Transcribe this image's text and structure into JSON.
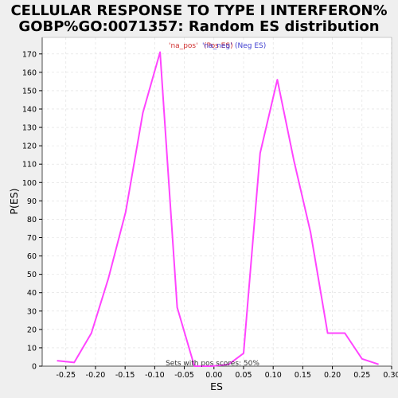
{
  "chart_data": {
    "type": "line",
    "title_lines": [
      "CELLULAR RESPONSE TO TYPE I INTERFERON%",
      "GOBP%GO:0071357: Random ES distribution"
    ],
    "xlabel": "ES",
    "ylabel": "P(ES)",
    "xlim": [
      -0.29,
      0.3
    ],
    "ylim": [
      0,
      179
    ],
    "x_ticks": [
      -0.25,
      -0.2,
      -0.15,
      -0.1,
      -0.05,
      0.0,
      0.05,
      0.1,
      0.15,
      0.2,
      0.25,
      0.3
    ],
    "x_tick_labels": [
      "-0.25",
      "-0.20",
      "-0.15",
      "-0.10",
      "-0.05",
      "0.00",
      "0.05",
      "0.10",
      "0.15",
      "0.20",
      "0.25",
      "0.30"
    ],
    "y_ticks": [
      0,
      10,
      20,
      30,
      40,
      50,
      60,
      70,
      80,
      90,
      100,
      110,
      120,
      130,
      140,
      150,
      160,
      170
    ],
    "grid": true,
    "series": [
      {
        "color": "#ff44ff",
        "x": [
          -0.265,
          -0.236,
          -0.207,
          -0.178,
          -0.149,
          -0.12,
          -0.091,
          -0.062,
          -0.033,
          -0.004,
          0.025,
          0.05,
          0.078,
          0.107,
          0.135,
          0.163,
          0.192,
          0.221,
          0.25,
          0.278
        ],
        "y": [
          3,
          2,
          18,
          48,
          84,
          138,
          171,
          32,
          0,
          0,
          1,
          7,
          116,
          156,
          112,
          73,
          18,
          18,
          4,
          1
        ]
      }
    ],
    "annotations": {
      "na_pos": "'na_pos'",
      "pos_es": "(Pos ES)",
      "neg_es": "(Neg ES)",
      "na_neg": "'na_neg'",
      "footer": "Sets with pos scores: 50%"
    },
    "colors": {
      "line": "#ff44ff",
      "na_pos": "#d03030",
      "pos_es": "#d03030",
      "na_neg": "#4040d0",
      "neg_es": "#4040d0",
      "grid": "#dddddd",
      "plot_bg": "#ffffff",
      "page_bg": "#efefef"
    }
  }
}
